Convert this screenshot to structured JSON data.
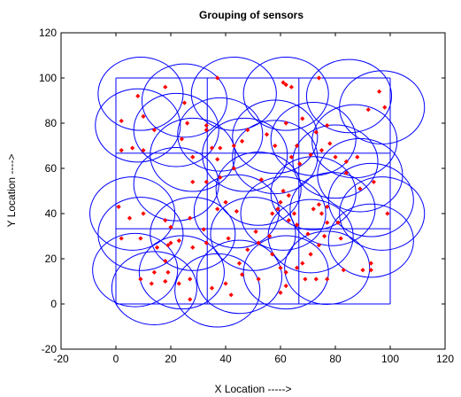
{
  "chart_data": {
    "type": "scatter",
    "title": "Grouping of sensors",
    "xlabel": "X Location ----->",
    "ylabel": "Y Location ---->",
    "xlim": [
      -20,
      120
    ],
    "ylim": [
      -20,
      120
    ],
    "xticks": [
      -20,
      0,
      20,
      40,
      60,
      80,
      100,
      120
    ],
    "yticks": [
      -20,
      0,
      20,
      40,
      60,
      80,
      100,
      120
    ],
    "colors": {
      "grid_lines": "#0000ff",
      "sensors": "#ff0000",
      "axes": "#000000"
    },
    "grid_lines": {
      "x": [
        0,
        33.3,
        66.7,
        100
      ],
      "y": [
        0,
        33.3,
        66.7,
        100
      ]
    },
    "circle_radius": 15.5,
    "cluster_centers": [
      [
        9,
        93
      ],
      [
        25,
        90
      ],
      [
        43,
        93
      ],
      [
        62,
        93
      ],
      [
        85,
        92
      ],
      [
        97,
        87
      ],
      [
        8,
        79
      ],
      [
        22,
        77
      ],
      [
        38,
        75
      ],
      [
        58,
        74
      ],
      [
        72,
        73
      ],
      [
        87,
        72
      ],
      [
        28,
        66
      ],
      [
        47,
        66
      ],
      [
        58,
        65
      ],
      [
        80,
        63
      ],
      [
        89,
        57
      ],
      [
        22,
        53
      ],
      [
        52,
        51
      ],
      [
        72,
        49
      ],
      [
        93,
        46
      ],
      [
        6,
        40
      ],
      [
        44,
        41
      ],
      [
        61,
        40
      ],
      [
        79,
        42
      ],
      [
        97,
        40
      ],
      [
        9,
        31
      ],
      [
        28,
        31
      ],
      [
        50,
        31
      ],
      [
        71,
        30
      ],
      [
        93,
        28
      ],
      [
        7,
        15
      ],
      [
        24,
        14
      ],
      [
        45,
        12
      ],
      [
        62,
        14
      ],
      [
        77,
        16
      ],
      [
        14,
        7
      ],
      [
        37,
        6
      ]
    ],
    "sensors": [
      [
        8,
        92
      ],
      [
        18,
        96
      ],
      [
        37,
        100
      ],
      [
        61,
        98
      ],
      [
        62,
        97
      ],
      [
        64,
        96
      ],
      [
        74,
        100
      ],
      [
        96,
        94
      ],
      [
        92,
        86
      ],
      [
        98,
        87
      ],
      [
        2,
        81
      ],
      [
        10,
        83
      ],
      [
        14,
        77
      ],
      [
        25,
        89
      ],
      [
        26,
        80
      ],
      [
        33,
        77
      ],
      [
        33,
        79
      ],
      [
        48,
        77
      ],
      [
        55,
        75
      ],
      [
        62,
        80
      ],
      [
        66,
        70
      ],
      [
        68,
        82
      ],
      [
        73,
        76
      ],
      [
        77,
        79
      ],
      [
        78,
        71
      ],
      [
        2,
        68
      ],
      [
        6,
        69
      ],
      [
        10,
        68
      ],
      [
        24,
        73
      ],
      [
        28,
        65
      ],
      [
        37,
        64
      ],
      [
        35,
        69
      ],
      [
        38,
        69
      ],
      [
        43,
        70
      ],
      [
        46,
        72
      ],
      [
        58,
        70
      ],
      [
        64,
        65
      ],
      [
        67,
        62
      ],
      [
        71,
        66
      ],
      [
        75,
        68
      ],
      [
        80,
        65
      ],
      [
        84,
        63
      ],
      [
        88,
        65
      ],
      [
        28,
        54
      ],
      [
        33,
        54
      ],
      [
        38,
        56
      ],
      [
        43,
        60
      ],
      [
        53,
        55
      ],
      [
        60,
        45
      ],
      [
        61,
        50
      ],
      [
        63,
        48
      ],
      [
        65,
        40
      ],
      [
        72,
        42
      ],
      [
        74,
        44
      ],
      [
        77,
        43
      ],
      [
        81,
        36
      ],
      [
        84,
        58
      ],
      [
        89,
        51
      ],
      [
        94,
        54
      ],
      [
        1,
        43
      ],
      [
        5,
        38
      ],
      [
        10,
        40
      ],
      [
        18,
        37
      ],
      [
        20,
        34
      ],
      [
        27,
        38
      ],
      [
        32,
        33
      ],
      [
        37,
        42
      ],
      [
        40,
        45
      ],
      [
        44,
        41
      ],
      [
        51,
        32
      ],
      [
        56,
        30
      ],
      [
        57,
        40
      ],
      [
        59,
        42
      ],
      [
        63,
        37
      ],
      [
        66,
        35
      ],
      [
        70,
        31
      ],
      [
        75,
        40
      ],
      [
        77,
        36
      ],
      [
        82,
        29
      ],
      [
        99,
        40
      ],
      [
        2,
        29
      ],
      [
        9,
        29
      ],
      [
        15,
        25
      ],
      [
        19,
        26
      ],
      [
        20,
        27
      ],
      [
        18,
        19
      ],
      [
        23,
        28
      ],
      [
        28,
        25
      ],
      [
        33,
        27
      ],
      [
        41,
        29
      ],
      [
        45,
        18
      ],
      [
        48,
        24
      ],
      [
        52,
        27
      ],
      [
        57,
        22
      ],
      [
        60,
        16
      ],
      [
        62,
        14
      ],
      [
        68,
        18
      ],
      [
        71,
        22
      ],
      [
        74,
        26
      ],
      [
        76,
        30
      ],
      [
        9,
        11
      ],
      [
        13,
        9
      ],
      [
        14,
        14
      ],
      [
        18,
        10
      ],
      [
        19,
        14
      ],
      [
        23,
        9
      ],
      [
        27,
        2
      ],
      [
        27,
        11
      ],
      [
        35,
        7
      ],
      [
        40,
        9
      ],
      [
        42,
        4
      ],
      [
        46,
        13
      ],
      [
        52,
        11
      ],
      [
        60,
        5
      ],
      [
        62,
        8
      ],
      [
        66,
        16
      ],
      [
        69,
        11
      ],
      [
        73,
        11
      ],
      [
        77,
        11
      ],
      [
        83,
        15
      ],
      [
        90,
        15
      ],
      [
        93,
        15
      ],
      [
        93,
        18
      ]
    ]
  }
}
